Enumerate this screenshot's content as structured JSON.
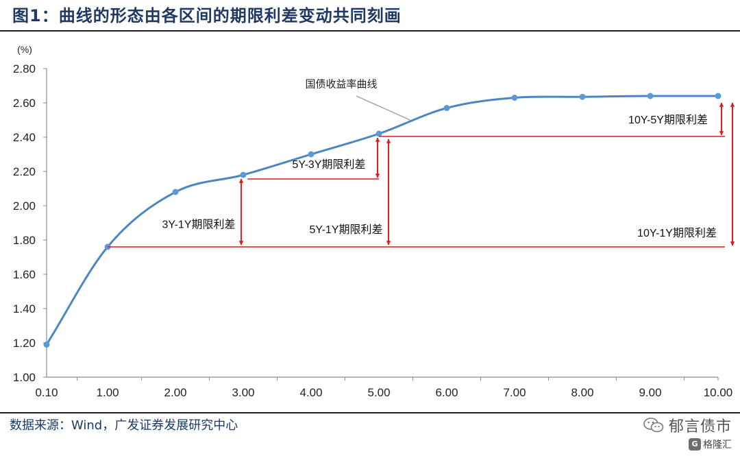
{
  "header": {
    "title": "图1：曲线的形态由各区间的期限利差变动共同刻画"
  },
  "footer": {
    "source": "数据来源：Wind，广发证券发展研究中心"
  },
  "watermark": {
    "name": "郁言债市",
    "sub": "格隆汇",
    "sub_icon": "G"
  },
  "chart_data": {
    "type": "line",
    "ylabel": "(%)",
    "xlim": [
      0.1,
      10
    ],
    "ylim": [
      1.0,
      2.8
    ],
    "x_ticks": [
      "0.10",
      "1.00",
      "2.00",
      "3.00",
      "4.00",
      "5.00",
      "6.00",
      "7.00",
      "8.00",
      "9.00",
      "10.00"
    ],
    "y_ticks": [
      "1.00",
      "1.20",
      "1.40",
      "1.60",
      "1.80",
      "2.00",
      "2.20",
      "2.40",
      "2.60",
      "2.80"
    ],
    "grid": false,
    "series": [
      {
        "name": "国债收益率曲线",
        "x": [
          0.1,
          1,
          2,
          3,
          4,
          5,
          6,
          7,
          8,
          9,
          10
        ],
        "y": [
          1.19,
          1.76,
          2.08,
          2.18,
          2.3,
          2.42,
          2.57,
          2.63,
          2.635,
          2.64,
          2.64
        ]
      }
    ],
    "annotations": [
      {
        "label": "国债收益率曲线",
        "kind": "series-callout"
      },
      {
        "label": "3Y-1Y期限利差",
        "from_tenor": 1,
        "to_tenor": 3,
        "arrow_at_x": 3
      },
      {
        "label": "5Y-3Y期限利差",
        "from_tenor": 3,
        "to_tenor": 5,
        "arrow_at_x": 5
      },
      {
        "label": "5Y-1Y期限利差",
        "from_tenor": 1,
        "to_tenor": 5,
        "arrow_at_x": 5
      },
      {
        "label": "10Y-5Y期限利差",
        "from_tenor": 5,
        "to_tenor": 10,
        "arrow_at_x": 10
      },
      {
        "label": "10Y-1Y期限利差",
        "from_tenor": 1,
        "to_tenor": 10,
        "arrow_at_x": 10
      }
    ],
    "colors": {
      "line": "#4a86c5",
      "marker": "#5b9bd5",
      "spread": "#e11b1b",
      "callout": "#a0a0a0"
    }
  }
}
